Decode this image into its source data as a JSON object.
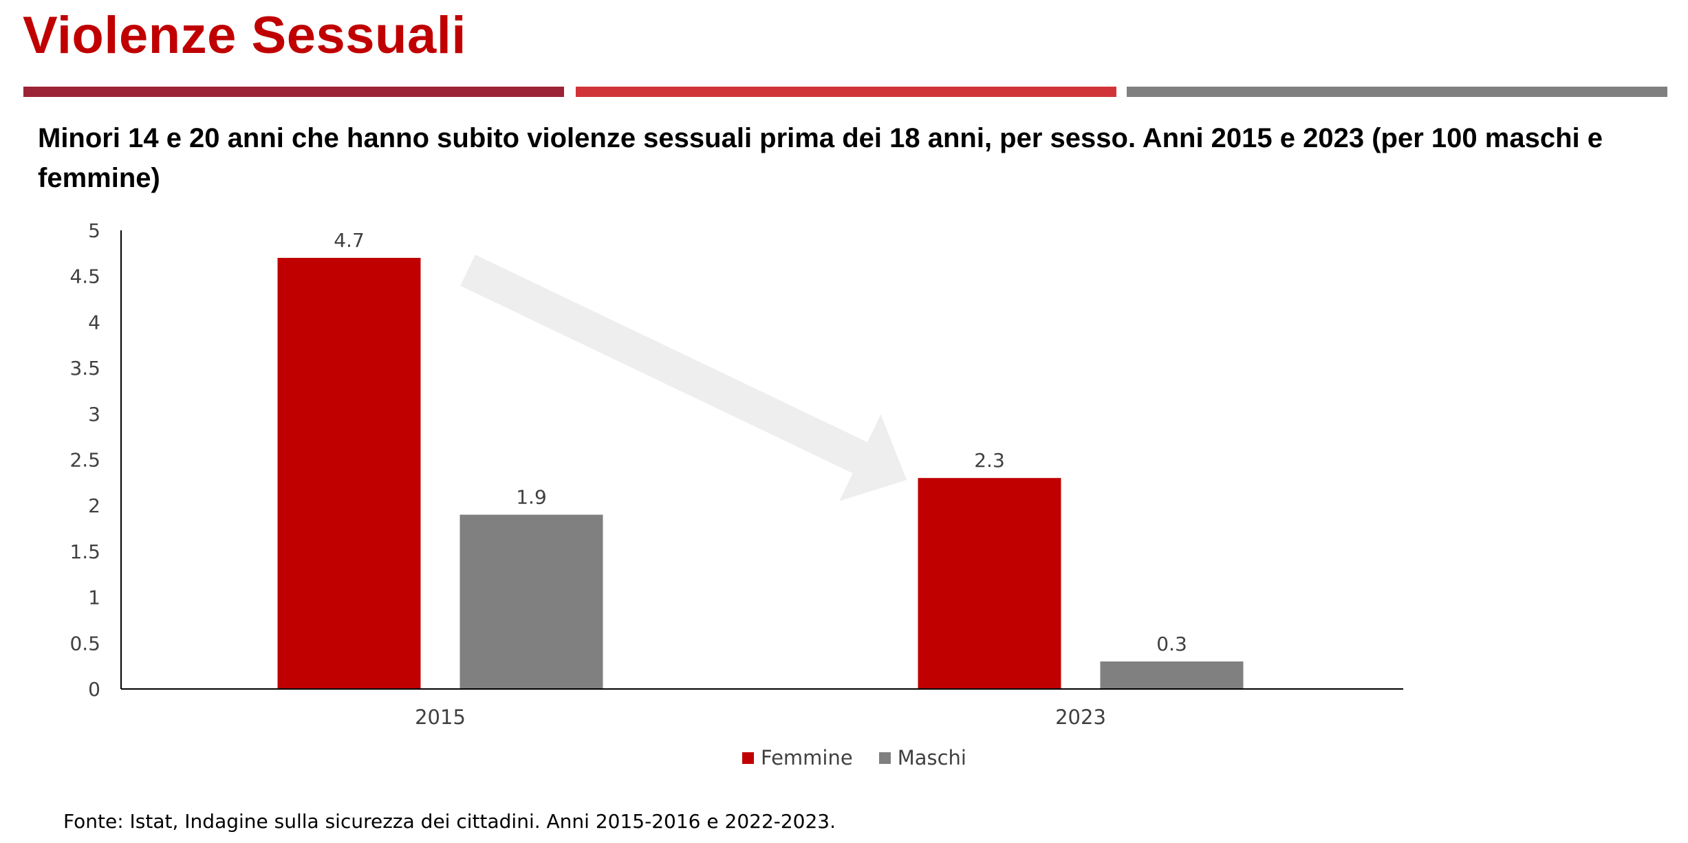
{
  "slide": {
    "title": "Violenze Sessuali",
    "rules": [
      {
        "color": "#9B2335"
      },
      {
        "color": "#D13438"
      },
      {
        "color": "#808080"
      }
    ]
  },
  "chart_heading": "Minori 14 e 20 anni che hanno subito violenze sessuali prima dei 18 anni, per sesso.  Anni 2015 e 2023 (per 100 maschi e femmine)",
  "source": "Fonte: Istat, Indagine sulla sicurezza dei cittadini. Anni 2015-2016 e 2022-2023.",
  "chart_data": {
    "type": "bar",
    "categories": [
      "2015",
      "2023"
    ],
    "series": [
      {
        "name": "Femmine",
        "color": "#C00000",
        "values": [
          4.7,
          2.3
        ],
        "labels": [
          "4.7",
          "2.3"
        ]
      },
      {
        "name": "Maschi",
        "color": "#808080",
        "values": [
          1.9,
          0.3
        ],
        "labels": [
          "1.9",
          "0.3"
        ]
      }
    ],
    "ylim": [
      0,
      5
    ],
    "yticks": [
      "0",
      "0.5",
      "1",
      "1.5",
      "2",
      "2.5",
      "3",
      "3.5",
      "4",
      "4.5",
      "5"
    ],
    "ytick_values": [
      0,
      0.5,
      1,
      1.5,
      2,
      2.5,
      3,
      3.5,
      4,
      4.5,
      5
    ],
    "grid": false,
    "legend_position": "bottom",
    "annotation": "decreasing-trend-arrow"
  }
}
